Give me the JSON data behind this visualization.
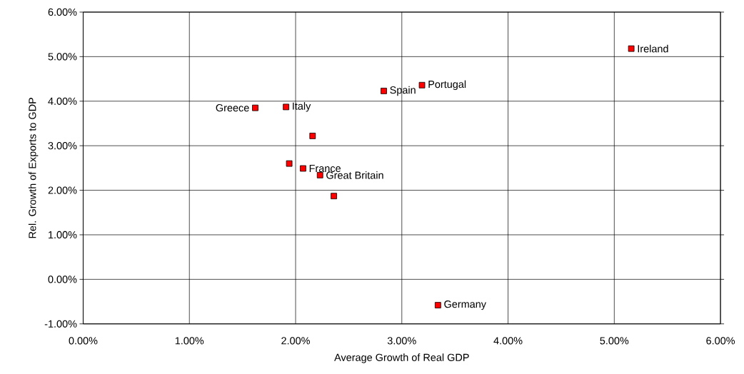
{
  "chart_data": {
    "type": "scatter",
    "xlabel": "Average Growth of Real GDP",
    "ylabel": "Rel. Growth of Exports to GDP",
    "x": [
      1.62,
      1.91,
      2.16,
      1.94,
      2.07,
      2.23,
      2.36,
      2.83,
      3.19,
      5.16,
      3.34
    ],
    "values": [
      3.85,
      3.87,
      3.22,
      2.6,
      2.49,
      2.34,
      1.87,
      4.23,
      4.36,
      5.18,
      -0.58
    ],
    "color": "#ff0000",
    "marker": "square",
    "grid": true,
    "xlim": [
      0,
      6
    ],
    "ylim": [
      -1,
      6
    ],
    "xticks": [
      {
        "value": 0,
        "label": "0.00%"
      },
      {
        "value": 1,
        "label": "1.00%"
      },
      {
        "value": 2,
        "label": "2.00%"
      },
      {
        "value": 3,
        "label": "3.00%"
      },
      {
        "value": 4,
        "label": "4.00%"
      },
      {
        "value": 5,
        "label": "5.00%"
      },
      {
        "value": 6,
        "label": "6.00%"
      }
    ],
    "yticks": [
      {
        "value": -1,
        "label": "-1.00%"
      },
      {
        "value": 0,
        "label": "0.00%"
      },
      {
        "value": 1,
        "label": "1.00%"
      },
      {
        "value": 2,
        "label": "2.00%"
      },
      {
        "value": 3,
        "label": "3.00%"
      },
      {
        "value": 4,
        "label": "4.00%"
      },
      {
        "value": 5,
        "label": "5.00%"
      },
      {
        "value": 6,
        "label": "6.00%"
      }
    ],
    "annotations": [
      {
        "text": "Greece",
        "x": 1.62,
        "y": 3.85
      },
      {
        "text": "Italy",
        "x": 1.91,
        "y": 3.87
      },
      {
        "text": "France",
        "x": 2.07,
        "y": 2.49
      },
      {
        "text": "Great Britain",
        "x": 2.23,
        "y": 2.34
      },
      {
        "text": "Spain",
        "x": 2.83,
        "y": 4.23
      },
      {
        "text": "Portugal",
        "x": 3.19,
        "y": 4.36
      },
      {
        "text": "Ireland",
        "x": 5.16,
        "y": 5.18
      },
      {
        "text": "Germany",
        "x": 3.34,
        "y": -0.58
      }
    ]
  }
}
